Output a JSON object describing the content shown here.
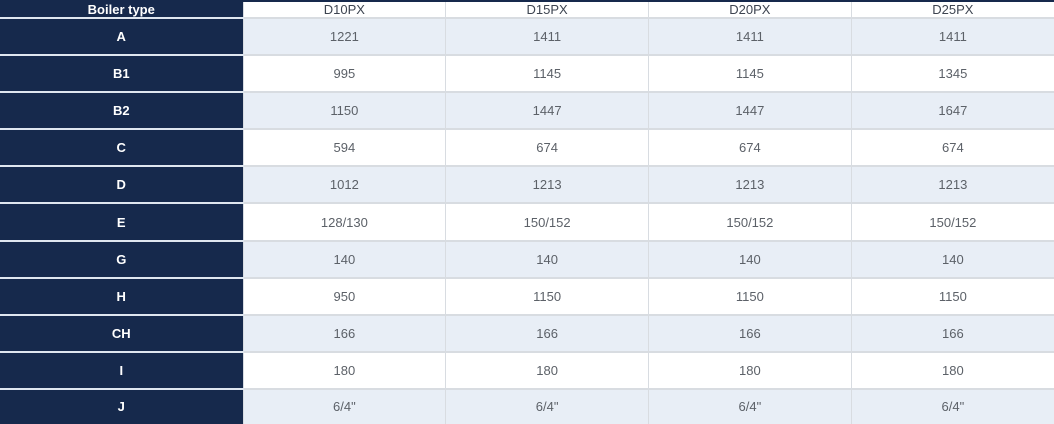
{
  "chart_data": {
    "type": "table",
    "header": {
      "label_column": "Boiler type",
      "columns": [
        "D10PX",
        "D15PX",
        "D20PX",
        "D25PX"
      ]
    },
    "rows": [
      {
        "label": "A",
        "values": [
          "1221",
          "1411",
          "1411",
          "1411"
        ]
      },
      {
        "label": "B1",
        "values": [
          "995",
          "1145",
          "1145",
          "1345"
        ]
      },
      {
        "label": "B2",
        "values": [
          "1150",
          "1447",
          "1447",
          "1647"
        ]
      },
      {
        "label": "C",
        "values": [
          "594",
          "674",
          "674",
          "674"
        ]
      },
      {
        "label": "D",
        "values": [
          "1012",
          "1213",
          "1213",
          "1213"
        ]
      },
      {
        "label": "E",
        "values": [
          "128/130",
          "150/152",
          "150/152",
          "150/152"
        ]
      },
      {
        "label": "G",
        "values": [
          "140",
          "140",
          "140",
          "140"
        ]
      },
      {
        "label": "H",
        "values": [
          "950",
          "1150",
          "1150",
          "1150"
        ]
      },
      {
        "label": "CH",
        "values": [
          "166",
          "166",
          "166",
          "166"
        ]
      },
      {
        "label": "I",
        "values": [
          "180",
          "180",
          "180",
          "180"
        ]
      },
      {
        "label": "J",
        "values": [
          "6/4\"",
          "6/4\"",
          "6/4\"",
          "6/4\""
        ]
      }
    ]
  },
  "colors": {
    "navy": "#16294c",
    "row_alt_bg": "#e8eef6",
    "row_bg": "#ffffff",
    "border_gray": "#d8dce1",
    "navy_separator": "#dfe6ef",
    "header_text": "#3d4450",
    "cell_text": "#5c6168",
    "label_text": "#ffffff"
  }
}
